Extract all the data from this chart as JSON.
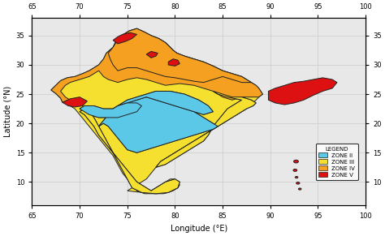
{
  "xlabel": "Longitude (°E)",
  "ylabel": "Latitude (°N)",
  "xlim": [
    65,
    100
  ],
  "ylim": [
    6,
    38
  ],
  "xticks": [
    65,
    70,
    75,
    80,
    85,
    90,
    95,
    100
  ],
  "yticks": [
    10,
    15,
    20,
    25,
    30,
    35
  ],
  "grid_color": "#cccccc",
  "background_color": "#e8e8e8",
  "zone_colors": {
    "II": "#5bc8e8",
    "III": "#f5e030",
    "IV": "#f5a020",
    "V": "#dd1111"
  },
  "legend_labels": [
    "ZONE II",
    "ZONE III",
    "ZONE IV",
    "ZONE V"
  ],
  "legend_colors": [
    "#5bc8e8",
    "#f5e030",
    "#f5a020",
    "#dd1111"
  ],
  "border_color": "#222222",
  "border_width": 0.7,
  "india_outer": [
    [
      68.2,
      23.6
    ],
    [
      68.0,
      24.3
    ],
    [
      67.5,
      25.1
    ],
    [
      67.0,
      25.7
    ],
    [
      67.5,
      26.5
    ],
    [
      68.0,
      27.3
    ],
    [
      68.7,
      27.8
    ],
    [
      69.5,
      28.0
    ],
    [
      70.3,
      28.5
    ],
    [
      71.0,
      29.0
    ],
    [
      71.5,
      29.5
    ],
    [
      72.0,
      30.0
    ],
    [
      72.5,
      31.0
    ],
    [
      72.8,
      32.0
    ],
    [
      73.5,
      33.0
    ],
    [
      73.8,
      34.0
    ],
    [
      74.2,
      34.8
    ],
    [
      74.6,
      35.2
    ],
    [
      75.2,
      35.8
    ],
    [
      76.0,
      36.2
    ],
    [
      76.8,
      35.6
    ],
    [
      77.5,
      35.0
    ],
    [
      78.3,
      34.5
    ],
    [
      79.0,
      33.8
    ],
    [
      79.5,
      33.0
    ],
    [
      79.8,
      32.5
    ],
    [
      80.2,
      32.0
    ],
    [
      81.0,
      31.5
    ],
    [
      82.0,
      31.0
    ],
    [
      83.0,
      30.5
    ],
    [
      84.0,
      29.8
    ],
    [
      85.0,
      29.0
    ],
    [
      86.0,
      28.5
    ],
    [
      87.0,
      28.0
    ],
    [
      87.5,
      27.5
    ],
    [
      88.0,
      27.0
    ],
    [
      88.5,
      26.5
    ],
    [
      88.8,
      26.0
    ],
    [
      89.0,
      25.5
    ],
    [
      89.2,
      25.0
    ],
    [
      88.8,
      24.5
    ],
    [
      88.5,
      24.0
    ],
    [
      88.2,
      23.5
    ],
    [
      87.8,
      23.0
    ],
    [
      87.5,
      22.5
    ],
    [
      87.0,
      22.0
    ],
    [
      86.5,
      21.5
    ],
    [
      86.0,
      21.0
    ],
    [
      85.5,
      20.5
    ],
    [
      85.0,
      20.0
    ],
    [
      84.5,
      19.5
    ],
    [
      84.0,
      19.0
    ],
    [
      83.5,
      18.5
    ],
    [
      83.0,
      18.0
    ],
    [
      82.5,
      17.5
    ],
    [
      82.0,
      17.0
    ],
    [
      81.5,
      16.5
    ],
    [
      81.0,
      16.0
    ],
    [
      80.5,
      15.5
    ],
    [
      80.0,
      15.0
    ],
    [
      79.5,
      14.5
    ],
    [
      79.0,
      14.0
    ],
    [
      78.5,
      13.5
    ],
    [
      78.0,
      12.5
    ],
    [
      77.5,
      11.5
    ],
    [
      77.0,
      10.5
    ],
    [
      76.5,
      10.0
    ],
    [
      76.0,
      9.5
    ],
    [
      75.5,
      9.0
    ],
    [
      75.0,
      8.5
    ],
    [
      76.0,
      8.3
    ],
    [
      77.0,
      8.2
    ],
    [
      77.5,
      8.5
    ],
    [
      78.0,
      9.0
    ],
    [
      78.5,
      9.5
    ],
    [
      79.0,
      10.0
    ],
    [
      79.5,
      10.5
    ],
    [
      80.0,
      10.5
    ],
    [
      80.3,
      10.0
    ],
    [
      80.5,
      9.5
    ],
    [
      80.3,
      9.0
    ],
    [
      79.8,
      8.5
    ],
    [
      79.3,
      8.2
    ],
    [
      78.8,
      8.0
    ],
    [
      77.8,
      8.0
    ],
    [
      76.8,
      8.0
    ],
    [
      76.0,
      8.5
    ],
    [
      75.5,
      9.5
    ],
    [
      75.0,
      10.5
    ],
    [
      74.5,
      11.5
    ],
    [
      74.0,
      13.0
    ],
    [
      73.5,
      14.5
    ],
    [
      73.0,
      15.5
    ],
    [
      72.5,
      16.5
    ],
    [
      72.0,
      17.5
    ],
    [
      71.5,
      18.5
    ],
    [
      71.0,
      19.5
    ],
    [
      70.5,
      20.5
    ],
    [
      70.0,
      21.5
    ],
    [
      69.5,
      22.5
    ],
    [
      69.0,
      23.0
    ],
    [
      68.2,
      23.6
    ]
  ],
  "zone5_kashmir": [
    [
      73.5,
      34.2
    ],
    [
      74.0,
      34.8
    ],
    [
      74.5,
      35.2
    ],
    [
      75.3,
      35.5
    ],
    [
      76.0,
      35.2
    ],
    [
      75.5,
      34.5
    ],
    [
      74.8,
      34.0
    ],
    [
      74.0,
      33.6
    ],
    [
      73.5,
      34.2
    ]
  ],
  "zone5_himachal": [
    [
      77.0,
      31.8
    ],
    [
      77.5,
      32.3
    ],
    [
      78.2,
      32.0
    ],
    [
      78.0,
      31.5
    ],
    [
      77.5,
      31.2
    ],
    [
      77.0,
      31.8
    ]
  ],
  "zone5_uttarakhand": [
    [
      79.3,
      30.5
    ],
    [
      79.8,
      31.0
    ],
    [
      80.3,
      30.8
    ],
    [
      80.5,
      30.2
    ],
    [
      80.0,
      29.8
    ],
    [
      79.3,
      30.0
    ],
    [
      79.3,
      30.5
    ]
  ],
  "zone5_gujarat": [
    [
      68.2,
      23.6
    ],
    [
      69.0,
      24.2
    ],
    [
      70.0,
      24.5
    ],
    [
      70.8,
      23.8
    ],
    [
      70.3,
      23.0
    ],
    [
      69.5,
      22.8
    ],
    [
      68.8,
      23.0
    ],
    [
      68.2,
      23.6
    ]
  ],
  "zone5_northeast": [
    [
      89.8,
      25.5
    ],
    [
      90.5,
      26.0
    ],
    [
      91.5,
      26.5
    ],
    [
      92.5,
      27.0
    ],
    [
      93.5,
      27.2
    ],
    [
      94.5,
      27.5
    ],
    [
      95.5,
      27.8
    ],
    [
      96.5,
      27.5
    ],
    [
      97.0,
      27.0
    ],
    [
      96.5,
      26.0
    ],
    [
      95.5,
      25.5
    ],
    [
      94.5,
      24.8
    ],
    [
      93.5,
      24.0
    ],
    [
      92.5,
      23.5
    ],
    [
      91.5,
      23.2
    ],
    [
      90.5,
      23.5
    ],
    [
      89.8,
      24.0
    ],
    [
      89.8,
      25.5
    ]
  ],
  "zone4_main": [
    [
      68.2,
      23.6
    ],
    [
      68.0,
      24.3
    ],
    [
      67.5,
      25.1
    ],
    [
      67.0,
      25.7
    ],
    [
      67.5,
      26.5
    ],
    [
      68.0,
      27.3
    ],
    [
      68.7,
      27.8
    ],
    [
      69.5,
      28.0
    ],
    [
      70.3,
      28.5
    ],
    [
      71.0,
      29.0
    ],
    [
      71.5,
      29.5
    ],
    [
      72.0,
      30.0
    ],
    [
      72.5,
      31.0
    ],
    [
      72.8,
      32.0
    ],
    [
      73.5,
      33.0
    ],
    [
      73.8,
      34.0
    ],
    [
      74.2,
      34.8
    ],
    [
      74.6,
      35.2
    ],
    [
      75.2,
      35.8
    ],
    [
      76.0,
      36.2
    ],
    [
      76.8,
      35.6
    ],
    [
      77.5,
      35.0
    ],
    [
      78.3,
      34.5
    ],
    [
      79.0,
      33.8
    ],
    [
      79.5,
      33.0
    ],
    [
      79.8,
      32.5
    ],
    [
      80.2,
      32.0
    ],
    [
      81.0,
      31.5
    ],
    [
      82.0,
      31.0
    ],
    [
      83.0,
      30.5
    ],
    [
      84.0,
      29.8
    ],
    [
      85.0,
      29.0
    ],
    [
      86.0,
      28.5
    ],
    [
      87.0,
      28.0
    ],
    [
      87.5,
      27.5
    ],
    [
      88.0,
      27.0
    ],
    [
      88.5,
      26.5
    ],
    [
      88.8,
      26.0
    ],
    [
      89.0,
      25.5
    ],
    [
      89.2,
      25.0
    ],
    [
      88.8,
      24.5
    ],
    [
      87.0,
      24.5
    ],
    [
      86.0,
      24.0
    ],
    [
      85.0,
      24.5
    ],
    [
      84.0,
      25.5
    ],
    [
      83.0,
      26.0
    ],
    [
      82.0,
      26.5
    ],
    [
      80.5,
      26.8
    ],
    [
      79.0,
      26.5
    ],
    [
      78.0,
      27.0
    ],
    [
      77.0,
      27.5
    ],
    [
      76.0,
      27.8
    ],
    [
      75.0,
      27.5
    ],
    [
      74.0,
      27.0
    ],
    [
      73.0,
      27.5
    ],
    [
      72.5,
      28.0
    ],
    [
      72.0,
      29.0
    ],
    [
      71.5,
      28.5
    ],
    [
      71.0,
      28.0
    ],
    [
      70.0,
      27.5
    ],
    [
      69.0,
      27.0
    ],
    [
      68.5,
      26.5
    ],
    [
      68.0,
      25.5
    ],
    [
      68.5,
      24.5
    ],
    [
      69.0,
      24.0
    ],
    [
      68.2,
      23.6
    ]
  ],
  "zone4_northern": [
    [
      73.5,
      33.0
    ],
    [
      74.2,
      34.8
    ],
    [
      74.6,
      35.2
    ],
    [
      75.2,
      35.8
    ],
    [
      76.0,
      36.2
    ],
    [
      76.8,
      35.6
    ],
    [
      77.5,
      35.0
    ],
    [
      78.3,
      34.5
    ],
    [
      79.0,
      33.8
    ],
    [
      79.5,
      33.0
    ],
    [
      79.8,
      32.5
    ],
    [
      80.2,
      32.0
    ],
    [
      81.0,
      31.5
    ],
    [
      82.0,
      31.0
    ],
    [
      83.0,
      30.5
    ],
    [
      84.0,
      29.8
    ],
    [
      85.0,
      29.0
    ],
    [
      86.0,
      28.5
    ],
    [
      87.0,
      28.0
    ],
    [
      87.5,
      27.5
    ],
    [
      88.0,
      27.0
    ],
    [
      87.0,
      27.0
    ],
    [
      86.0,
      27.5
    ],
    [
      85.0,
      28.0
    ],
    [
      84.0,
      27.5
    ],
    [
      83.0,
      27.0
    ],
    [
      82.0,
      27.2
    ],
    [
      81.0,
      27.5
    ],
    [
      80.0,
      27.8
    ],
    [
      79.0,
      28.0
    ],
    [
      78.0,
      28.5
    ],
    [
      77.0,
      29.0
    ],
    [
      76.0,
      29.5
    ],
    [
      75.0,
      29.5
    ],
    [
      74.0,
      29.0
    ],
    [
      73.5,
      30.0
    ],
    [
      73.2,
      31.0
    ],
    [
      73.0,
      32.0
    ],
    [
      73.5,
      33.0
    ]
  ],
  "zone3_main": [
    [
      70.0,
      22.0
    ],
    [
      70.5,
      21.5
    ],
    [
      71.0,
      20.5
    ],
    [
      71.5,
      19.5
    ],
    [
      72.0,
      18.0
    ],
    [
      72.5,
      17.0
    ],
    [
      73.0,
      16.0
    ],
    [
      73.5,
      15.0
    ],
    [
      74.0,
      14.0
    ],
    [
      74.5,
      13.0
    ],
    [
      75.0,
      12.0
    ],
    [
      75.5,
      11.0
    ],
    [
      76.0,
      10.0
    ],
    [
      76.5,
      9.5
    ],
    [
      77.0,
      9.0
    ],
    [
      77.5,
      8.5
    ],
    [
      78.0,
      9.0
    ],
    [
      78.5,
      9.5
    ],
    [
      79.0,
      10.0
    ],
    [
      80.0,
      10.5
    ],
    [
      80.5,
      10.0
    ],
    [
      80.3,
      9.0
    ],
    [
      79.3,
      8.2
    ],
    [
      78.0,
      8.0
    ],
    [
      76.5,
      8.2
    ],
    [
      75.5,
      9.0
    ],
    [
      75.0,
      10.5
    ],
    [
      74.5,
      12.0
    ],
    [
      74.0,
      13.5
    ],
    [
      73.5,
      15.0
    ],
    [
      73.0,
      16.5
    ],
    [
      72.5,
      18.0
    ],
    [
      72.0,
      19.5
    ],
    [
      71.5,
      21.0
    ],
    [
      71.0,
      22.0
    ],
    [
      70.5,
      22.5
    ],
    [
      70.0,
      22.0
    ]
  ],
  "zone3_east": [
    [
      84.0,
      25.5
    ],
    [
      85.0,
      25.0
    ],
    [
      86.0,
      24.5
    ],
    [
      87.0,
      24.5
    ],
    [
      88.0,
      24.0
    ],
    [
      88.5,
      23.5
    ],
    [
      88.2,
      23.0
    ],
    [
      87.5,
      22.5
    ],
    [
      87.0,
      22.0
    ],
    [
      86.5,
      21.5
    ],
    [
      86.0,
      21.0
    ],
    [
      85.5,
      20.5
    ],
    [
      85.0,
      20.0
    ],
    [
      84.5,
      19.5
    ],
    [
      84.0,
      19.0
    ],
    [
      83.5,
      18.5
    ],
    [
      83.0,
      18.0
    ],
    [
      82.5,
      17.5
    ],
    [
      82.0,
      17.0
    ],
    [
      81.5,
      16.5
    ],
    [
      81.0,
      16.0
    ],
    [
      80.5,
      15.5
    ],
    [
      80.0,
      15.0
    ],
    [
      79.5,
      14.5
    ],
    [
      79.0,
      14.0
    ],
    [
      78.5,
      13.5
    ],
    [
      78.0,
      12.5
    ],
    [
      79.0,
      13.0
    ],
    [
      80.0,
      14.0
    ],
    [
      81.0,
      15.0
    ],
    [
      82.0,
      16.0
    ],
    [
      83.0,
      17.0
    ],
    [
      83.5,
      18.0
    ],
    [
      84.0,
      19.5
    ],
    [
      84.5,
      20.5
    ],
    [
      85.0,
      21.5
    ],
    [
      85.5,
      22.5
    ],
    [
      86.0,
      23.0
    ],
    [
      86.5,
      23.5
    ],
    [
      87.0,
      24.0
    ],
    [
      85.5,
      24.5
    ],
    [
      84.5,
      25.0
    ],
    [
      84.0,
      25.5
    ]
  ],
  "zone2_deccan": [
    [
      72.0,
      19.5
    ],
    [
      72.5,
      20.5
    ],
    [
      73.0,
      21.5
    ],
    [
      73.5,
      22.5
    ],
    [
      74.0,
      23.0
    ],
    [
      75.0,
      23.5
    ],
    [
      76.0,
      24.0
    ],
    [
      77.0,
      24.5
    ],
    [
      78.0,
      24.0
    ],
    [
      79.0,
      23.5
    ],
    [
      80.0,
      23.0
    ],
    [
      81.0,
      22.5
    ],
    [
      82.0,
      22.0
    ],
    [
      83.0,
      21.0
    ],
    [
      84.0,
      20.0
    ],
    [
      84.5,
      19.5
    ],
    [
      84.0,
      19.0
    ],
    [
      83.0,
      18.5
    ],
    [
      82.0,
      18.0
    ],
    [
      81.0,
      17.5
    ],
    [
      80.0,
      17.0
    ],
    [
      79.0,
      16.5
    ],
    [
      78.0,
      16.0
    ],
    [
      77.0,
      15.5
    ],
    [
      76.0,
      15.0
    ],
    [
      75.0,
      15.5
    ],
    [
      74.5,
      16.5
    ],
    [
      74.0,
      17.5
    ],
    [
      73.5,
      18.5
    ],
    [
      73.0,
      19.5
    ],
    [
      72.5,
      20.0
    ],
    [
      72.0,
      19.5
    ]
  ],
  "zone2_central": [
    [
      74.0,
      23.0
    ],
    [
      75.0,
      24.0
    ],
    [
      76.0,
      24.5
    ],
    [
      77.0,
      25.0
    ],
    [
      78.0,
      25.5
    ],
    [
      79.5,
      25.5
    ],
    [
      81.0,
      25.0
    ],
    [
      82.5,
      24.0
    ],
    [
      83.5,
      23.0
    ],
    [
      84.0,
      22.0
    ],
    [
      83.0,
      21.5
    ],
    [
      82.0,
      22.0
    ],
    [
      81.0,
      22.5
    ],
    [
      80.0,
      23.0
    ],
    [
      79.0,
      23.5
    ],
    [
      78.0,
      24.0
    ],
    [
      77.0,
      24.5
    ],
    [
      76.0,
      24.0
    ],
    [
      75.0,
      23.5
    ],
    [
      74.0,
      23.0
    ]
  ],
  "zone2_rajasthan": [
    [
      70.0,
      22.5
    ],
    [
      70.5,
      23.0
    ],
    [
      71.5,
      23.0
    ],
    [
      72.5,
      22.5
    ],
    [
      73.5,
      22.5
    ],
    [
      74.0,
      23.0
    ],
    [
      75.0,
      23.5
    ],
    [
      76.0,
      23.5
    ],
    [
      76.5,
      23.0
    ],
    [
      76.0,
      22.0
    ],
    [
      75.0,
      21.5
    ],
    [
      74.0,
      21.0
    ],
    [
      73.0,
      21.0
    ],
    [
      72.0,
      21.0
    ],
    [
      71.0,
      21.5
    ],
    [
      70.5,
      22.0
    ],
    [
      70.0,
      22.5
    ]
  ],
  "andaman_lons": [
    92.7,
    92.6,
    92.75,
    92.9,
    93.1
  ],
  "andaman_lats": [
    13.5,
    12.0,
    10.8,
    9.8,
    8.8
  ],
  "andaman_sizes": [
    0.25,
    0.2,
    0.15,
    0.18,
    0.15
  ]
}
